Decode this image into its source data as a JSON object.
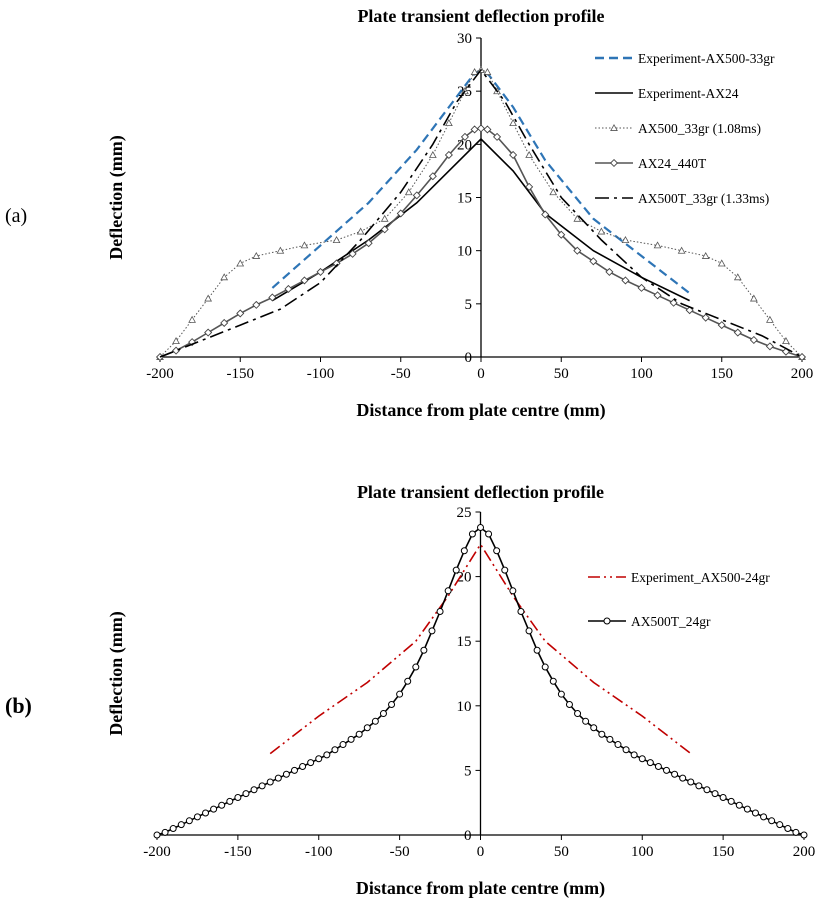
{
  "panel_labels": [
    "(a)",
    "(b)"
  ],
  "chart_data": [
    {
      "type": "line",
      "title": "Plate transient deflection profile",
      "xlabel": "Distance from plate centre (mm)",
      "ylabel": "Deflection (mm)",
      "xlim": [
        -200,
        200
      ],
      "ylim": [
        0,
        30
      ],
      "x_ticks": [
        -200,
        -150,
        -100,
        -50,
        0,
        50,
        100,
        150,
        200
      ],
      "y_ticks": [
        0,
        5,
        10,
        15,
        20,
        25,
        30
      ],
      "grid": false,
      "legend_position": "top-right",
      "series": [
        {
          "name": "Experiment-AX500-33gr",
          "style": "dashed",
          "color": "#2e75b6",
          "marker": "none",
          "points": [
            [
              -130,
              6.5
            ],
            [
              -100,
              10.5
            ],
            [
              -70,
              14.5
            ],
            [
              -40,
              19.5
            ],
            [
              -20,
              23.5
            ],
            [
              -5,
              26.5
            ],
            [
              0,
              27
            ],
            [
              5,
              26.5
            ],
            [
              20,
              23.5
            ],
            [
              40,
              18.5
            ],
            [
              70,
              13
            ],
            [
              100,
              9.5
            ],
            [
              130,
              6
            ]
          ]
        },
        {
          "name": "Experiment-AX24",
          "style": "solid",
          "color": "#000000",
          "marker": "none",
          "points": [
            [
              -130,
              5.3
            ],
            [
              -100,
              8
            ],
            [
              -70,
              11
            ],
            [
              -40,
              14.5
            ],
            [
              -20,
              17.5
            ],
            [
              0,
              20.5
            ],
            [
              20,
              17.5
            ],
            [
              40,
              13.5
            ],
            [
              70,
              10
            ],
            [
              100,
              7.5
            ],
            [
              130,
              5.3
            ]
          ]
        },
        {
          "name": "AX500_33gr (1.08ms)",
          "style": "dotted",
          "color": "#555555",
          "marker": "triangle",
          "points": [
            [
              -200,
              0
            ],
            [
              -190,
              1.5
            ],
            [
              -180,
              3.5
            ],
            [
              -170,
              5.5
            ],
            [
              -160,
              7.5
            ],
            [
              -150,
              8.8
            ],
            [
              -140,
              9.5
            ],
            [
              -125,
              10
            ],
            [
              -110,
              10.5
            ],
            [
              -90,
              11
            ],
            [
              -75,
              11.8
            ],
            [
              -60,
              13
            ],
            [
              -45,
              15.5
            ],
            [
              -30,
              19
            ],
            [
              -20,
              22
            ],
            [
              -10,
              25
            ],
            [
              -4,
              26.8
            ],
            [
              0,
              27
            ],
            [
              4,
              26.8
            ],
            [
              10,
              25
            ],
            [
              20,
              22
            ],
            [
              30,
              19
            ],
            [
              45,
              15.5
            ],
            [
              60,
              13
            ],
            [
              75,
              11.8
            ],
            [
              90,
              11
            ],
            [
              110,
              10.5
            ],
            [
              125,
              10
            ],
            [
              140,
              9.5
            ],
            [
              150,
              8.8
            ],
            [
              160,
              7.5
            ],
            [
              170,
              5.5
            ],
            [
              180,
              3.5
            ],
            [
              190,
              1.5
            ],
            [
              200,
              0
            ]
          ]
        },
        {
          "name": "AX24_440T",
          "style": "solid",
          "color": "#555555",
          "marker": "diamond",
          "points": [
            [
              -200,
              0
            ],
            [
              -190,
              0.6
            ],
            [
              -180,
              1.4
            ],
            [
              -170,
              2.3
            ],
            [
              -160,
              3.2
            ],
            [
              -150,
              4.1
            ],
            [
              -140,
              4.9
            ],
            [
              -130,
              5.6
            ],
            [
              -120,
              6.4
            ],
            [
              -110,
              7.2
            ],
            [
              -100,
              8
            ],
            [
              -90,
              8.8
            ],
            [
              -80,
              9.7
            ],
            [
              -70,
              10.7
            ],
            [
              -60,
              12
            ],
            [
              -50,
              13.5
            ],
            [
              -40,
              15.2
            ],
            [
              -30,
              17
            ],
            [
              -20,
              19
            ],
            [
              -10,
              20.7
            ],
            [
              -4,
              21.4
            ],
            [
              0,
              21.5
            ],
            [
              4,
              21.4
            ],
            [
              10,
              20.7
            ],
            [
              20,
              19
            ],
            [
              30,
              16
            ],
            [
              40,
              13.4
            ],
            [
              50,
              11.5
            ],
            [
              60,
              10
            ],
            [
              70,
              9
            ],
            [
              80,
              8
            ],
            [
              90,
              7.2
            ],
            [
              100,
              6.5
            ],
            [
              110,
              5.8
            ],
            [
              120,
              5.1
            ],
            [
              130,
              4.4
            ],
            [
              140,
              3.7
            ],
            [
              150,
              3
            ],
            [
              160,
              2.3
            ],
            [
              170,
              1.6
            ],
            [
              180,
              1
            ],
            [
              190,
              0.5
            ],
            [
              200,
              0
            ]
          ]
        },
        {
          "name": "AX500T_33gr (1.33ms)",
          "style": "dashdot",
          "color": "#000000",
          "marker": "none",
          "points": [
            [
              -200,
              0
            ],
            [
              -175,
              1.5
            ],
            [
              -150,
              3
            ],
            [
              -125,
              4.5
            ],
            [
              -100,
              7
            ],
            [
              -75,
              11
            ],
            [
              -50,
              15.5
            ],
            [
              -30,
              20
            ],
            [
              -15,
              24
            ],
            [
              0,
              27
            ],
            [
              15,
              24
            ],
            [
              30,
              20
            ],
            [
              50,
              15
            ],
            [
              75,
              11
            ],
            [
              100,
              7.5
            ],
            [
              125,
              5
            ],
            [
              150,
              3.5
            ],
            [
              175,
              2
            ],
            [
              200,
              0
            ]
          ]
        }
      ]
    },
    {
      "type": "line",
      "title": "Plate transient deflection profile",
      "xlabel": "Distance from plate centre (mm)",
      "ylabel": "Deflection (mm)",
      "xlim": [
        -200,
        200
      ],
      "ylim": [
        0,
        25
      ],
      "x_ticks": [
        -200,
        -150,
        -100,
        -50,
        0,
        50,
        100,
        150,
        200
      ],
      "y_ticks": [
        0,
        5,
        10,
        15,
        20,
        25
      ],
      "grid": false,
      "legend_position": "top-right",
      "series": [
        {
          "name": "Experiment_AX500-24gr",
          "style": "dashdotdot",
          "color": "#c00000",
          "marker": "none",
          "points": [
            [
              -130,
              6.3
            ],
            [
              -100,
              9.2
            ],
            [
              -70,
              11.8
            ],
            [
              -40,
              15
            ],
            [
              -20,
              18.5
            ],
            [
              0,
              22.5
            ],
            [
              20,
              18.5
            ],
            [
              40,
              15
            ],
            [
              70,
              11.8
            ],
            [
              100,
              9.2
            ],
            [
              130,
              6.3
            ]
          ]
        },
        {
          "name": "AX500T_24gr",
          "style": "solid",
          "color": "#000000",
          "marker": "circle",
          "points": [
            [
              -200,
              0
            ],
            [
              -195,
              0.2
            ],
            [
              -190,
              0.5
            ],
            [
              -185,
              0.8
            ],
            [
              -180,
              1.1
            ],
            [
              -175,
              1.4
            ],
            [
              -170,
              1.7
            ],
            [
              -165,
              2
            ],
            [
              -160,
              2.3
            ],
            [
              -155,
              2.6
            ],
            [
              -150,
              2.9
            ],
            [
              -145,
              3.2
            ],
            [
              -140,
              3.5
            ],
            [
              -135,
              3.8
            ],
            [
              -130,
              4.1
            ],
            [
              -125,
              4.4
            ],
            [
              -120,
              4.7
            ],
            [
              -115,
              5
            ],
            [
              -110,
              5.3
            ],
            [
              -105,
              5.6
            ],
            [
              -100,
              5.9
            ],
            [
              -95,
              6.2
            ],
            [
              -90,
              6.6
            ],
            [
              -85,
              7
            ],
            [
              -80,
              7.4
            ],
            [
              -75,
              7.8
            ],
            [
              -70,
              8.3
            ],
            [
              -65,
              8.8
            ],
            [
              -60,
              9.4
            ],
            [
              -55,
              10.1
            ],
            [
              -50,
              10.9
            ],
            [
              -45,
              11.9
            ],
            [
              -40,
              13
            ],
            [
              -35,
              14.3
            ],
            [
              -30,
              15.8
            ],
            [
              -25,
              17.3
            ],
            [
              -20,
              18.9
            ],
            [
              -15,
              20.5
            ],
            [
              -10,
              22
            ],
            [
              -5,
              23.3
            ],
            [
              0,
              23.8
            ],
            [
              5,
              23.3
            ],
            [
              10,
              22
            ],
            [
              15,
              20.5
            ],
            [
              20,
              18.9
            ],
            [
              25,
              17.3
            ],
            [
              30,
              15.8
            ],
            [
              35,
              14.3
            ],
            [
              40,
              13
            ],
            [
              45,
              11.9
            ],
            [
              50,
              10.9
            ],
            [
              55,
              10.1
            ],
            [
              60,
              9.4
            ],
            [
              65,
              8.8
            ],
            [
              70,
              8.3
            ],
            [
              75,
              7.8
            ],
            [
              80,
              7.4
            ],
            [
              85,
              7
            ],
            [
              90,
              6.6
            ],
            [
              95,
              6.2
            ],
            [
              100,
              5.9
            ],
            [
              105,
              5.6
            ],
            [
              110,
              5.3
            ],
            [
              115,
              5
            ],
            [
              120,
              4.7
            ],
            [
              125,
              4.4
            ],
            [
              130,
              4.1
            ],
            [
              135,
              3.8
            ],
            [
              140,
              3.5
            ],
            [
              145,
              3.2
            ],
            [
              150,
              2.9
            ],
            [
              155,
              2.6
            ],
            [
              160,
              2.3
            ],
            [
              165,
              2
            ],
            [
              170,
              1.7
            ],
            [
              175,
              1.4
            ],
            [
              180,
              1.1
            ],
            [
              185,
              0.8
            ],
            [
              190,
              0.5
            ],
            [
              195,
              0.2
            ],
            [
              200,
              0
            ]
          ]
        }
      ]
    }
  ]
}
